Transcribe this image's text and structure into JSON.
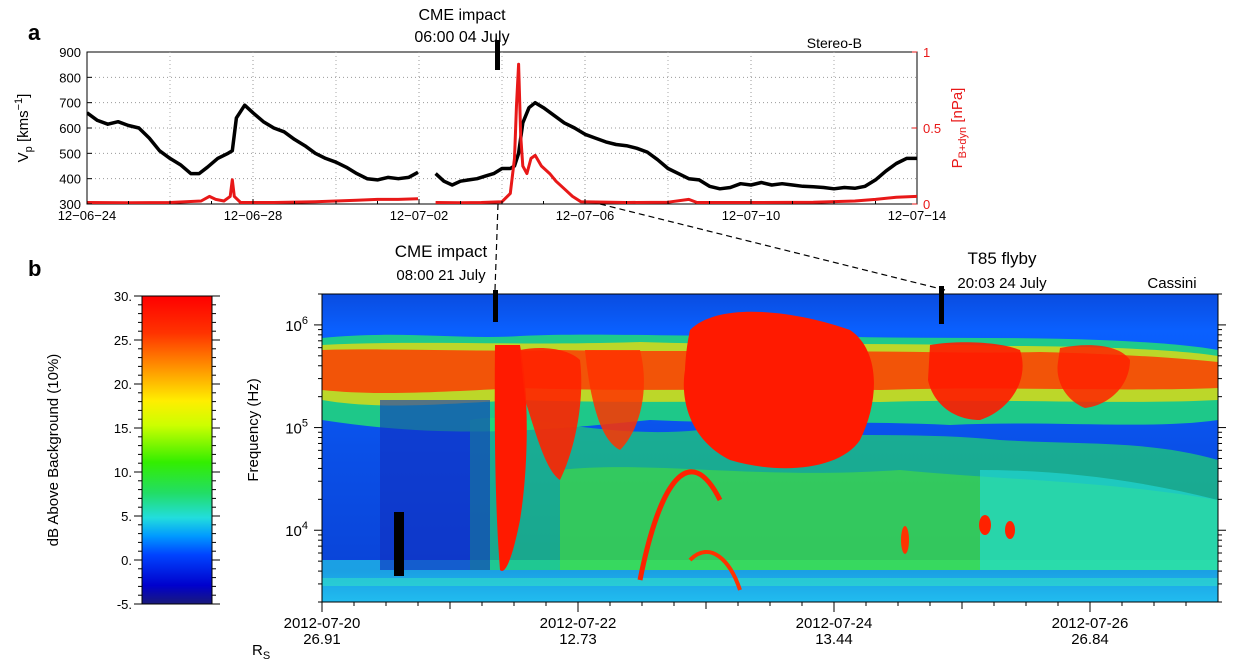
{
  "figure": {
    "panel_a_label": "a",
    "panel_b_label": "b"
  },
  "chart_data": [
    {
      "panel": "a",
      "type": "line",
      "spacecraft": "Stereo-B",
      "ylabel_left": "V_p [kms^-1]",
      "ylabel_left_main": "V",
      "ylabel_left_sub": "p",
      "ylabel_left_unit": "[kms",
      "ylabel_left_sup": "−1",
      "ylabel_left_close": "]",
      "ylabel_right": "P_B+dyn [nPa]",
      "ylabel_right_main": "P",
      "ylabel_right_sub": "B+dyn",
      "ylabel_right_unit": "[nPa]",
      "ylim_left": [
        300,
        900
      ],
      "ylim_right": [
        0,
        1
      ],
      "yticks_left": [
        300,
        400,
        500,
        600,
        700,
        800,
        900
      ],
      "yticks_right": [
        0,
        0.5,
        1
      ],
      "ytick_labels_right": [
        "0",
        "0.5",
        "1"
      ],
      "xlim_days": [
        0,
        20
      ],
      "xticks": [
        "12−06−24",
        "12−06−28",
        "12−07−02",
        "12−07−06",
        "12−07−10",
        "12−07−14"
      ],
      "grid": true,
      "annotation": {
        "line1": "CME impact",
        "line2": "06:00 04 July",
        "x_day": 10.25
      },
      "series": [
        {
          "name": "V_p",
          "color": "#000000",
          "axis": "left",
          "segments": [
            [
              [
                0,
                660
              ],
              [
                0.5,
                630
              ],
              [
                1,
                615
              ],
              [
                1.5,
                625
              ],
              [
                2,
                610
              ],
              [
                2.5,
                600
              ],
              [
                3,
                560
              ],
              [
                3.5,
                510
              ],
              [
                4,
                480
              ],
              [
                4.5,
                455
              ],
              [
                5,
                420
              ],
              [
                5.4,
                420
              ],
              [
                5.8,
                445
              ],
              [
                6.3,
                480
              ],
              [
                6.8,
                500
              ],
              [
                7,
                510
              ],
              [
                7.2,
                640
              ],
              [
                7.6,
                690
              ],
              [
                8,
                660
              ],
              [
                8.5,
                625
              ],
              [
                9,
                600
              ],
              [
                9.5,
                585
              ],
              [
                10,
                555
              ],
              [
                10.5,
                530
              ],
              [
                11,
                500
              ],
              [
                11.5,
                480
              ],
              [
                12,
                465
              ],
              [
                12.5,
                445
              ],
              [
                13,
                420
              ],
              [
                13.5,
                400
              ],
              [
                14,
                395
              ],
              [
                14.5,
                405
              ],
              [
                15,
                400
              ],
              [
                15.5,
                405
              ],
              [
                15.95,
                425
              ]
            ],
            [
              [
                16.8,
                420
              ],
              [
                17.2,
                390
              ],
              [
                17.6,
                375
              ],
              [
                18,
                390
              ],
              [
                18.4,
                395
              ],
              [
                18.8,
                400
              ],
              [
                19.2,
                410
              ],
              [
                19.6,
                420
              ],
              [
                20,
                440
              ],
              [
                20.4,
                440
              ],
              [
                20.6,
                450
              ],
              [
                20.8,
                500
              ],
              [
                21,
                620
              ],
              [
                21.3,
                680
              ],
              [
                21.6,
                700
              ],
              [
                22,
                680
              ],
              [
                22.5,
                650
              ],
              [
                23,
                620
              ],
              [
                23.5,
                600
              ],
              [
                24,
                575
              ],
              [
                24.5,
                560
              ],
              [
                25,
                545
              ],
              [
                25.5,
                535
              ],
              [
                26,
                530
              ],
              [
                26.5,
                520
              ],
              [
                27,
                505
              ],
              [
                27.5,
                475
              ],
              [
                28,
                440
              ],
              [
                28.5,
                420
              ],
              [
                29,
                400
              ],
              [
                29.5,
                395
              ],
              [
                30,
                370
              ],
              [
                30.5,
                360
              ],
              [
                31,
                365
              ],
              [
                31.5,
                380
              ],
              [
                32,
                375
              ],
              [
                32.5,
                385
              ],
              [
                33,
                375
              ],
              [
                33.5,
                380
              ],
              [
                34,
                375
              ],
              [
                34.5,
                370
              ],
              [
                35,
                368
              ],
              [
                35.5,
                365
              ],
              [
                36,
                360
              ],
              [
                36.5,
                365
              ],
              [
                37,
                362
              ],
              [
                37.5,
                370
              ],
              [
                38,
                395
              ],
              [
                38.5,
                430
              ],
              [
                39,
                460
              ],
              [
                39.5,
                480
              ],
              [
                40,
                480
              ]
            ]
          ]
        },
        {
          "name": "P_B+dyn",
          "color": "#e81818",
          "axis": "right",
          "segments": [
            [
              [
                0,
                0.01
              ],
              [
                2,
                0.008
              ],
              [
                4,
                0.01
              ],
              [
                5.5,
                0.02
              ],
              [
                5.9,
                0.05
              ],
              [
                6.2,
                0.03
              ],
              [
                6.6,
                0.02
              ],
              [
                6.9,
                0.05
              ],
              [
                7,
                0.16
              ],
              [
                7.1,
                0.05
              ],
              [
                7.4,
                0.01
              ],
              [
                9,
                0.01
              ],
              [
                11,
                0.015
              ],
              [
                12,
                0.02
              ],
              [
                13,
                0.025
              ],
              [
                14,
                0.03
              ],
              [
                15,
                0.03
              ],
              [
                15.95,
                0.035
              ]
            ],
            [
              [
                16.8,
                0.01
              ],
              [
                18,
                0.008
              ],
              [
                19,
                0.01
              ],
              [
                20,
                0.015
              ],
              [
                20.4,
                0.07
              ],
              [
                20.6,
                0.3
              ],
              [
                20.7,
                0.65
              ],
              [
                20.8,
                0.92
              ],
              [
                20.9,
                0.45
              ],
              [
                21,
                0.25
              ],
              [
                21.2,
                0.2
              ],
              [
                21.4,
                0.3
              ],
              [
                21.6,
                0.32
              ],
              [
                21.9,
                0.25
              ],
              [
                22.3,
                0.2
              ],
              [
                22.6,
                0.15
              ],
              [
                23,
                0.1
              ],
              [
                23.4,
                0.05
              ],
              [
                23.8,
                0.015
              ],
              [
                26,
                0.01
              ],
              [
                28,
                0.012
              ],
              [
                29,
                0.03
              ],
              [
                29.4,
                0.01
              ],
              [
                32,
                0.01
              ],
              [
                35,
                0.012
              ],
              [
                37,
                0.02
              ],
              [
                38,
                0.03
              ],
              [
                39,
                0.045
              ],
              [
                40,
                0.05
              ]
            ]
          ]
        }
      ]
    },
    {
      "panel": "b",
      "type": "heatmap",
      "spacecraft": "Cassini",
      "ylabel": "Frequency (Hz)",
      "yscale": "log",
      "ylim": [
        2000,
        2000000
      ],
      "yticks": [
        10000,
        100000,
        1000000
      ],
      "ytick_base": "10",
      "ytick_exponents": [
        "4",
        "5",
        "6"
      ],
      "xticks": [
        "2012-07-20",
        "2012-07-22",
        "2012-07-24",
        "2012-07-26"
      ],
      "rs_label_main": "R",
      "rs_label_sub": "S",
      "rs_values": [
        "26.91",
        "12.73",
        "13.44",
        "26.84"
      ],
      "annotations": [
        {
          "id": "cme",
          "line1": "CME impact",
          "line2": "08:00 21 July"
        },
        {
          "id": "t85",
          "line1": "T85 flyby",
          "line2": "20:03 24 July"
        }
      ],
      "colorbar": {
        "label": "dB Above Background (10%)",
        "range": [
          -5,
          30
        ],
        "ticks": [
          "30.",
          "25.",
          "20.",
          "15.",
          "10.",
          "5.",
          "0.",
          "-5."
        ]
      }
    }
  ]
}
